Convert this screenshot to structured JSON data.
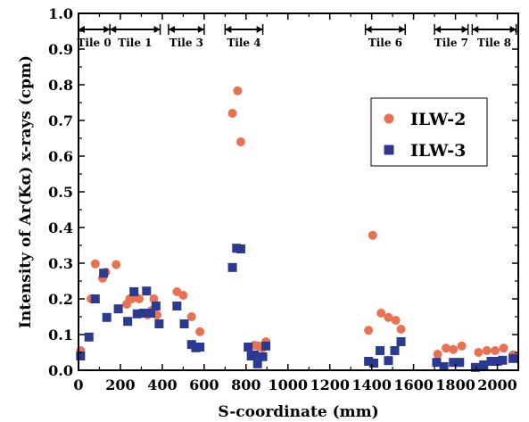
{
  "chart_data": {
    "type": "scatter",
    "xlabel": "S-coordinate (mm)",
    "ylabel": "Intensity of Ar(Kα) x-rays (cpm)",
    "xlim": [
      0,
      2100
    ],
    "ylim": [
      0,
      1.0
    ],
    "x_ticks": [
      0,
      200,
      400,
      600,
      800,
      1000,
      1200,
      1400,
      1600,
      1800,
      2000
    ],
    "y_ticks": [
      0.0,
      0.1,
      0.2,
      0.3,
      0.4,
      0.5,
      0.6,
      0.7,
      0.8,
      0.9,
      1.0
    ],
    "x_tick_labels": [
      "0",
      "200",
      "400",
      "600",
      "800",
      "1000",
      "1200",
      "1400",
      "1600",
      "1800",
      "2000"
    ],
    "y_tick_labels": [
      "0.0",
      "0.1",
      "0.2",
      "0.3",
      "0.4",
      "0.5",
      "0.6",
      "0.7",
      "0.8",
      "0.9",
      "1.0"
    ],
    "legend_position": "top-right",
    "grid": false,
    "tiles": [
      {
        "label": "Tile 0",
        "start": 0,
        "end": 150
      },
      {
        "label": "Tile 1",
        "start": 150,
        "end": 390
      },
      {
        "label": "Tile 3",
        "start": 430,
        "end": 600
      },
      {
        "label": "Tile 4",
        "start": 700,
        "end": 880
      },
      {
        "label": "Tile 6",
        "start": 1370,
        "end": 1560
      },
      {
        "label": "Tile 7",
        "start": 1700,
        "end": 1860
      },
      {
        "label": "Tile 8",
        "start": 1880,
        "end": 2090
      }
    ],
    "series": [
      {
        "name": "ILW-2",
        "marker": "circle",
        "color": "#e8714f",
        "points": [
          [
            10,
            0.055
          ],
          [
            60,
            0.2
          ],
          [
            80,
            0.298
          ],
          [
            115,
            0.258
          ],
          [
            130,
            0.275
          ],
          [
            180,
            0.296
          ],
          [
            230,
            0.185
          ],
          [
            245,
            0.2
          ],
          [
            255,
            0.2
          ],
          [
            275,
            0.205
          ],
          [
            290,
            0.2
          ],
          [
            330,
            0.155
          ],
          [
            350,
            0.168
          ],
          [
            360,
            0.2
          ],
          [
            375,
            0.155
          ],
          [
            470,
            0.22
          ],
          [
            500,
            0.21
          ],
          [
            540,
            0.15
          ],
          [
            580,
            0.108
          ],
          [
            735,
            0.72
          ],
          [
            760,
            0.783
          ],
          [
            775,
            0.64
          ],
          [
            840,
            0.07
          ],
          [
            860,
            0.068
          ],
          [
            880,
            0.063
          ],
          [
            895,
            0.08
          ],
          [
            1385,
            0.112
          ],
          [
            1405,
            0.378
          ],
          [
            1445,
            0.16
          ],
          [
            1480,
            0.148
          ],
          [
            1515,
            0.14
          ],
          [
            1540,
            0.115
          ],
          [
            1715,
            0.045
          ],
          [
            1755,
            0.062
          ],
          [
            1790,
            0.058
          ],
          [
            1830,
            0.068
          ],
          [
            1910,
            0.05
          ],
          [
            1950,
            0.055
          ],
          [
            1990,
            0.055
          ],
          [
            2030,
            0.062
          ],
          [
            2075,
            0.043
          ]
        ]
      },
      {
        "name": "ILW-3",
        "marker": "square",
        "color": "#2b3990",
        "points": [
          [
            10,
            0.04
          ],
          [
            50,
            0.093
          ],
          [
            80,
            0.2
          ],
          [
            120,
            0.272
          ],
          [
            135,
            0.148
          ],
          [
            190,
            0.172
          ],
          [
            235,
            0.137
          ],
          [
            265,
            0.22
          ],
          [
            280,
            0.158
          ],
          [
            310,
            0.16
          ],
          [
            325,
            0.222
          ],
          [
            345,
            0.16
          ],
          [
            370,
            0.18
          ],
          [
            385,
            0.13
          ],
          [
            470,
            0.18
          ],
          [
            505,
            0.13
          ],
          [
            540,
            0.072
          ],
          [
            560,
            0.063
          ],
          [
            580,
            0.065
          ],
          [
            735,
            0.288
          ],
          [
            755,
            0.342
          ],
          [
            775,
            0.34
          ],
          [
            810,
            0.065
          ],
          [
            825,
            0.04
          ],
          [
            840,
            0.043
          ],
          [
            855,
            0.018
          ],
          [
            880,
            0.038
          ],
          [
            895,
            0.068
          ],
          [
            1385,
            0.025
          ],
          [
            1410,
            0.02
          ],
          [
            1440,
            0.055
          ],
          [
            1480,
            0.027
          ],
          [
            1510,
            0.055
          ],
          [
            1540,
            0.08
          ],
          [
            1710,
            0.022
          ],
          [
            1745,
            0.01
          ],
          [
            1790,
            0.022
          ],
          [
            1820,
            0.022
          ],
          [
            1895,
            0.008
          ],
          [
            1935,
            0.015
          ],
          [
            1970,
            0.025
          ],
          [
            2000,
            0.025
          ],
          [
            2025,
            0.028
          ],
          [
            2075,
            0.033
          ]
        ]
      }
    ]
  }
}
